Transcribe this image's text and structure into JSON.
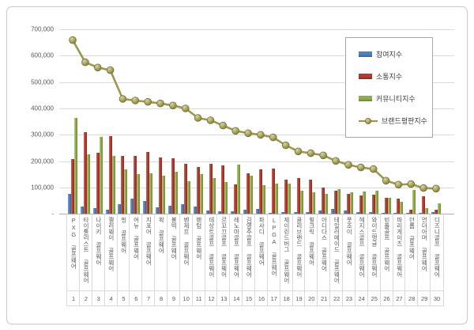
{
  "chart_data": {
    "type": "bar",
    "title": "",
    "categories": [
      "PXG 골프웨어",
      "타이틀리스트 골프웨어",
      "나이키 골프웨어",
      "캘러웨이 골프웨어",
      "핑 골프웨어",
      "어뉴 골프웨어",
      "지포어 골프웨어",
      "왁 골프웨어",
      "볼빅 골프웨어",
      "벤제프 골프웨어",
      "팬텀 골프웨어",
      "데상트골프 골프웨어",
      "르꼬끄골프 골프웨어",
      "레노마골프 골프웨어",
      "김영주골프 골프웨어",
      "파사디 골프웨어",
      "LPGA 골프웨어",
      "제이린드버그 골프웨어",
      "클리브랜드 골프웨어",
      "힐크릭 골프웨어",
      "아디다스 골프웨어",
      "테일러메이드 골프웨어",
      "풋조이 골프웨어",
      "헤지스골프 골프웨어",
      "와이드앵글 골프웨어",
      "빈폴골프 골프웨어",
      "파리게이츠 골프웨어",
      "던롭 골프웨어",
      "언더아머 골프웨어",
      "디즈니골프 골프웨어"
    ],
    "ranks": [
      "1",
      "2",
      "3",
      "4",
      "5",
      "6",
      "7",
      "8",
      "9",
      "10",
      "11",
      "12",
      "13",
      "14",
      "15",
      "16",
      "17",
      "18",
      "19",
      "20",
      "21",
      "22",
      "23",
      "24",
      "25",
      "26",
      "27",
      "28",
      "29",
      "30"
    ],
    "series": [
      {
        "name": "참여지수",
        "type": "bar",
        "color": "#4F81BD",
        "values": [
          76000,
          28000,
          21000,
          16000,
          36000,
          58000,
          50000,
          25000,
          30000,
          38000,
          28000,
          13000,
          11000,
          9000,
          15000,
          20000,
          5000,
          8000,
          6000,
          8000,
          13000,
          18000,
          14000,
          8000,
          6000,
          5000,
          4000,
          3000,
          3000,
          6000
        ]
      },
      {
        "name": "소통지수",
        "type": "bar",
        "color": "#B23A31",
        "values": [
          207000,
          311000,
          231000,
          296000,
          221000,
          220000,
          235000,
          213000,
          210000,
          190000,
          178000,
          190000,
          183000,
          113000,
          153000,
          170000,
          171000,
          131000,
          136000,
          129000,
          101000,
          88000,
          76000,
          71000,
          74000,
          61000,
          59000,
          16000,
          66000,
          15000
        ]
      },
      {
        "name": "커뮤니티지수",
        "type": "bar",
        "color": "#8FAE4B",
        "values": [
          363000,
          226000,
          291000,
          219000,
          170000,
          150000,
          155000,
          146000,
          160000,
          125000,
          152000,
          135000,
          120000,
          187000,
          145000,
          110000,
          114000,
          116000,
          89000,
          81000,
          76000,
          94000,
          81000,
          86000,
          88000,
          61000,
          46000,
          90000,
          21000,
          40000
        ]
      },
      {
        "name": "브랜드평판지수",
        "type": "line",
        "color": "#9C984F",
        "marker_fill": "#ABA660",
        "marker_stroke": "#77733C",
        "values": [
          659000,
          575000,
          555000,
          545000,
          436000,
          430000,
          425000,
          419000,
          411000,
          400000,
          364000,
          355000,
          335000,
          315000,
          306000,
          300000,
          290000,
          260000,
          237000,
          230000,
          222000,
          201000,
          186000,
          176000,
          170000,
          126000,
          111000,
          113000,
          98000,
          96000
        ]
      }
    ],
    "y_axis": {
      "min": 0,
      "max": 700000,
      "step": 100000,
      "tick_labels": [
        "700,000",
        "600,000",
        "500,000",
        "400,000",
        "300,000",
        "200,000",
        "100,000",
        "-"
      ]
    },
    "legend_position": "top-right",
    "grid": true
  }
}
